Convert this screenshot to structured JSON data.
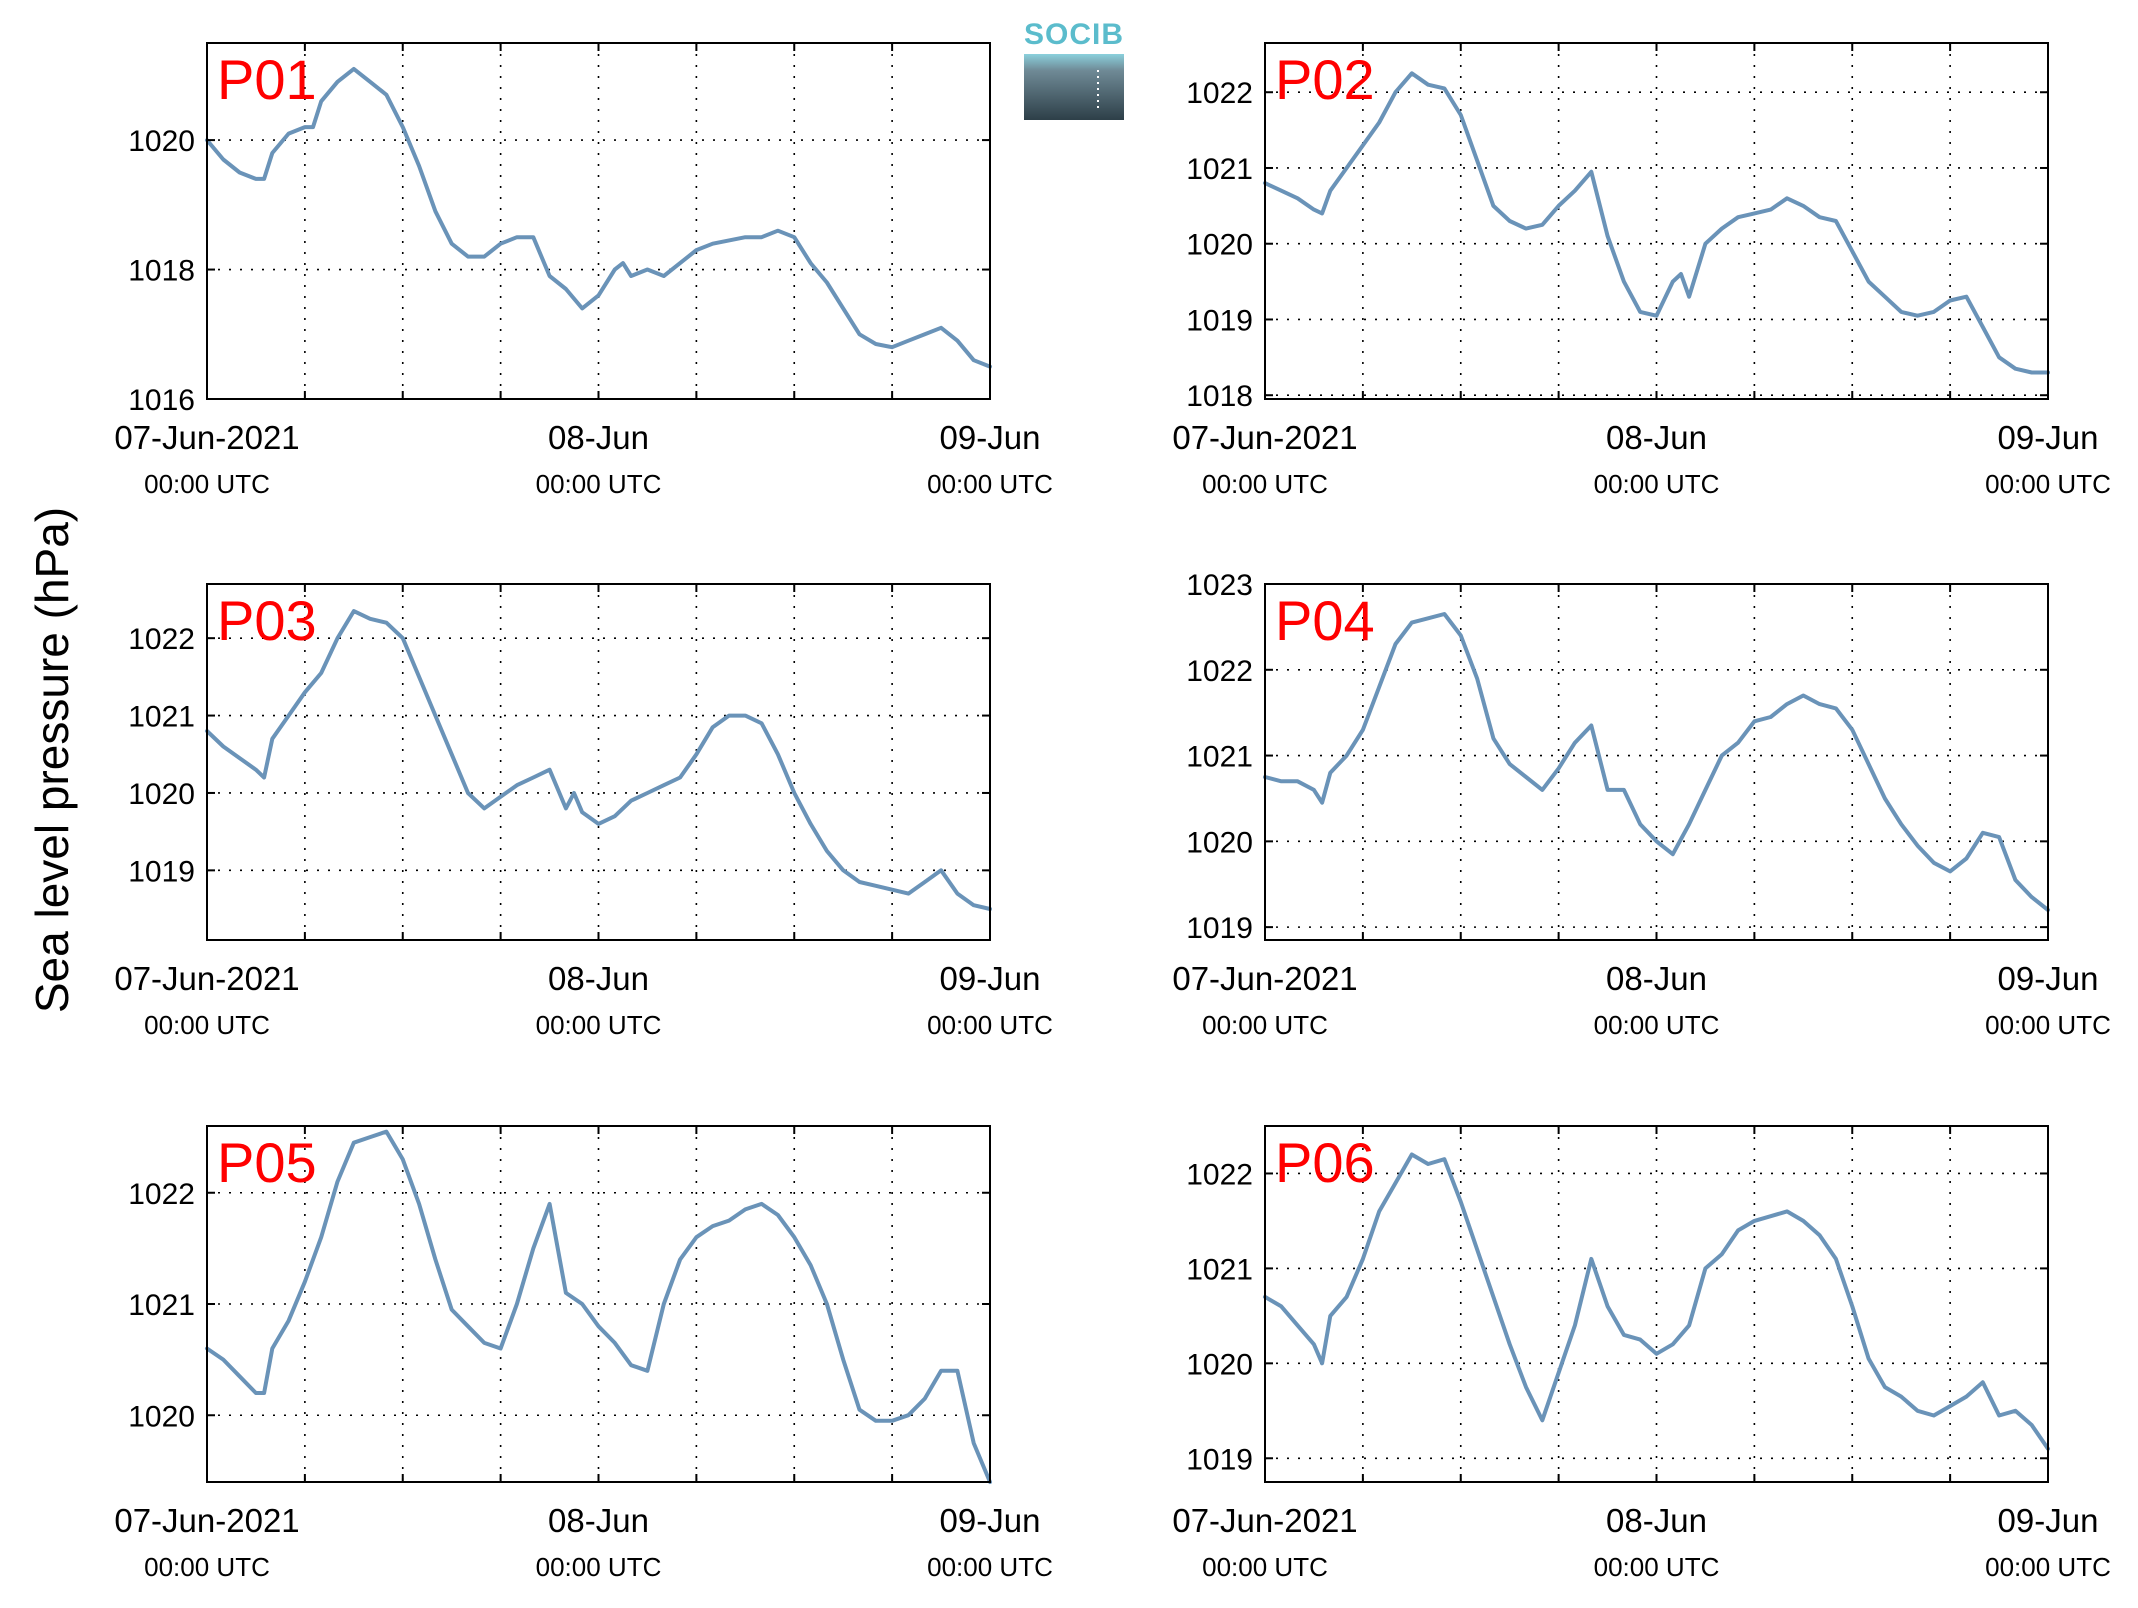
{
  "figure": {
    "ylabel": "Sea level pressure (hPa)",
    "logo_text": "SOCIB",
    "line_color": "#6a93b8"
  },
  "chart_data": [
    {
      "type": "line",
      "title": "P01",
      "ylim": [
        1016,
        1021.5
      ],
      "yticks": [
        1016,
        1018,
        1020
      ],
      "x_range_hours": [
        0,
        48
      ],
      "xticks": [
        {
          "line1": "07-Jun-2021",
          "line2": "00:00 UTC"
        },
        {
          "line1": "08-Jun",
          "line2": "00:00 UTC"
        },
        {
          "line1": "09-Jun",
          "line2": "00:00 UTC"
        }
      ],
      "grid": true,
      "series": [
        {
          "x": [
            0,
            1,
            2,
            3,
            3.5,
            4,
            5,
            6,
            6.5,
            7,
            8,
            9,
            10,
            11,
            12,
            13,
            14,
            15,
            16,
            17,
            18,
            19,
            20,
            21,
            22,
            23,
            24,
            25,
            25.5,
            26,
            27,
            28,
            29,
            30,
            31,
            32,
            33,
            34,
            35,
            36,
            37,
            38,
            39,
            40,
            41,
            42,
            43,
            44,
            45,
            46,
            47,
            48
          ],
          "y": [
            1020,
            1019.7,
            1019.5,
            1019.4,
            1019.4,
            1019.8,
            1020.1,
            1020.2,
            1020.2,
            1020.6,
            1020.9,
            1021.1,
            1020.9,
            1020.7,
            1020.2,
            1019.6,
            1018.9,
            1018.4,
            1018.2,
            1018.2,
            1018.4,
            1018.5,
            1018.5,
            1017.9,
            1017.7,
            1017.4,
            1017.6,
            1018.0,
            1018.1,
            1017.9,
            1018.0,
            1017.9,
            1018.1,
            1018.3,
            1018.4,
            1018.45,
            1018.5,
            1018.5,
            1018.6,
            1018.5,
            1018.1,
            1017.8,
            1017.4,
            1017.0,
            1016.85,
            1016.8,
            1016.9,
            1017.0,
            1017.1,
            1016.9,
            1016.6,
            1016.5
          ]
        }
      ]
    },
    {
      "type": "line",
      "title": "P02",
      "ylim": [
        1017.95,
        1022.65
      ],
      "yticks": [
        1018,
        1019,
        1020,
        1021,
        1022
      ],
      "x_range_hours": [
        0,
        48
      ],
      "xticks": [
        {
          "line1": "07-Jun-2021",
          "line2": "00:00 UTC"
        },
        {
          "line1": "08-Jun",
          "line2": "00:00 UTC"
        },
        {
          "line1": "09-Jun",
          "line2": "00:00 UTC"
        }
      ],
      "grid": true,
      "series": [
        {
          "x": [
            0,
            1,
            2,
            3,
            3.5,
            4,
            5,
            6,
            7,
            8,
            9,
            10,
            11,
            12,
            13,
            14,
            15,
            16,
            17,
            18,
            19,
            20,
            21,
            22,
            23,
            24,
            25,
            25.5,
            26,
            27,
            28,
            29,
            30,
            31,
            32,
            33,
            34,
            35,
            36,
            37,
            38,
            39,
            40,
            41,
            42,
            43,
            44,
            45,
            46,
            47,
            48
          ],
          "y": [
            1020.8,
            1020.7,
            1020.6,
            1020.45,
            1020.4,
            1020.7,
            1021.0,
            1021.3,
            1021.6,
            1022.0,
            1022.25,
            1022.1,
            1022.05,
            1021.7,
            1021.1,
            1020.5,
            1020.3,
            1020.2,
            1020.25,
            1020.5,
            1020.7,
            1020.95,
            1020.1,
            1019.5,
            1019.1,
            1019.05,
            1019.5,
            1019.6,
            1019.3,
            1020.0,
            1020.2,
            1020.35,
            1020.4,
            1020.45,
            1020.6,
            1020.5,
            1020.35,
            1020.3,
            1019.9,
            1019.5,
            1019.3,
            1019.1,
            1019.05,
            1019.1,
            1019.25,
            1019.3,
            1018.9,
            1018.5,
            1018.35,
            1018.3,
            1018.3
          ]
        }
      ]
    },
    {
      "type": "line",
      "title": "P03",
      "ylim": [
        1018.1,
        1022.7
      ],
      "yticks": [
        1019,
        1020,
        1021,
        1022
      ],
      "x_range_hours": [
        0,
        48
      ],
      "xticks": [
        {
          "line1": "07-Jun-2021",
          "line2": "00:00 UTC"
        },
        {
          "line1": "08-Jun",
          "line2": "00:00 UTC"
        },
        {
          "line1": "09-Jun",
          "line2": "00:00 UTC"
        }
      ],
      "grid": true,
      "series": [
        {
          "x": [
            0,
            1,
            2,
            3,
            3.5,
            4,
            5,
            6,
            7,
            8,
            9,
            10,
            11,
            12,
            13,
            14,
            15,
            16,
            17,
            18,
            19,
            20,
            21,
            22,
            22.5,
            23,
            24,
            25,
            26,
            27,
            28,
            29,
            30,
            31,
            32,
            33,
            34,
            35,
            36,
            37,
            38,
            39,
            40,
            41,
            42,
            43,
            44,
            45,
            46,
            47,
            48
          ],
          "y": [
            1020.8,
            1020.6,
            1020.45,
            1020.3,
            1020.2,
            1020.7,
            1021.0,
            1021.3,
            1021.55,
            1022.0,
            1022.35,
            1022.25,
            1022.2,
            1022.0,
            1021.5,
            1021.0,
            1020.5,
            1020.0,
            1019.8,
            1019.95,
            1020.1,
            1020.2,
            1020.3,
            1019.8,
            1020.0,
            1019.75,
            1019.6,
            1019.7,
            1019.9,
            1020.0,
            1020.1,
            1020.2,
            1020.5,
            1020.85,
            1021.0,
            1021.0,
            1020.9,
            1020.5,
            1020.0,
            1019.6,
            1019.25,
            1019.0,
            1018.85,
            1018.8,
            1018.75,
            1018.7,
            1018.85,
            1019.0,
            1018.7,
            1018.55,
            1018.5
          ]
        }
      ]
    },
    {
      "type": "line",
      "title": "P04",
      "ylim": [
        1018.85,
        1023
      ],
      "yticks": [
        1019,
        1020,
        1021,
        1022,
        1023
      ],
      "x_range_hours": [
        0,
        48
      ],
      "xticks": [
        {
          "line1": "07-Jun-2021",
          "line2": "00:00 UTC"
        },
        {
          "line1": "08-Jun",
          "line2": "00:00 UTC"
        },
        {
          "line1": "09-Jun",
          "line2": "00:00 UTC"
        }
      ],
      "grid": true,
      "series": [
        {
          "x": [
            0,
            1,
            2,
            3,
            3.5,
            4,
            5,
            6,
            7,
            8,
            9,
            10,
            11,
            12,
            13,
            14,
            15,
            16,
            17,
            18,
            19,
            20,
            21,
            22,
            23,
            24,
            25,
            26,
            27,
            28,
            29,
            30,
            31,
            32,
            33,
            34,
            35,
            36,
            37,
            38,
            39,
            40,
            41,
            42,
            43,
            44,
            45,
            46,
            47,
            48
          ],
          "y": [
            1020.75,
            1020.7,
            1020.7,
            1020.6,
            1020.45,
            1020.8,
            1021.0,
            1021.3,
            1021.8,
            1022.3,
            1022.55,
            1022.6,
            1022.65,
            1022.4,
            1021.9,
            1021.2,
            1020.9,
            1020.75,
            1020.6,
            1020.85,
            1021.15,
            1021.35,
            1020.6,
            1020.6,
            1020.2,
            1020.0,
            1019.85,
            1020.2,
            1020.6,
            1021.0,
            1021.15,
            1021.4,
            1021.45,
            1021.6,
            1021.7,
            1021.6,
            1021.55,
            1021.3,
            1020.9,
            1020.5,
            1020.2,
            1019.95,
            1019.75,
            1019.65,
            1019.8,
            1020.1,
            1020.05,
            1019.55,
            1019.35,
            1019.2
          ]
        }
      ]
    },
    {
      "type": "line",
      "title": "P05",
      "ylim": [
        1019.4,
        1022.6
      ],
      "yticks": [
        1020,
        1021,
        1022
      ],
      "x_range_hours": [
        0,
        48
      ],
      "xticks": [
        {
          "line1": "07-Jun-2021",
          "line2": "00:00 UTC"
        },
        {
          "line1": "08-Jun",
          "line2": "00:00 UTC"
        },
        {
          "line1": "09-Jun",
          "line2": "00:00 UTC"
        }
      ],
      "grid": true,
      "series": [
        {
          "x": [
            0,
            1,
            2,
            3,
            3.5,
            4,
            5,
            6,
            7,
            8,
            9,
            10,
            11,
            12,
            13,
            14,
            15,
            16,
            17,
            18,
            19,
            20,
            21,
            22,
            23,
            24,
            25,
            26,
            27,
            28,
            29,
            30,
            31,
            32,
            33,
            34,
            35,
            36,
            37,
            38,
            39,
            40,
            41,
            42,
            43,
            44,
            45,
            46,
            47,
            48
          ],
          "y": [
            1020.6,
            1020.5,
            1020.35,
            1020.2,
            1020.2,
            1020.6,
            1020.85,
            1021.2,
            1021.6,
            1022.1,
            1022.45,
            1022.5,
            1022.55,
            1022.3,
            1021.9,
            1021.4,
            1020.95,
            1020.8,
            1020.65,
            1020.6,
            1021.0,
            1021.5,
            1021.9,
            1021.1,
            1021.0,
            1020.8,
            1020.65,
            1020.45,
            1020.4,
            1021.0,
            1021.4,
            1021.6,
            1021.7,
            1021.75,
            1021.85,
            1021.9,
            1021.8,
            1021.6,
            1021.35,
            1021.0,
            1020.5,
            1020.05,
            1019.95,
            1019.95,
            1020.0,
            1020.15,
            1020.4,
            1020.4,
            1019.75,
            1019.4
          ]
        }
      ]
    },
    {
      "type": "line",
      "title": "P06",
      "ylim": [
        1018.75,
        1022.5
      ],
      "yticks": [
        1019,
        1020,
        1021,
        1022
      ],
      "x_range_hours": [
        0,
        48
      ],
      "xticks": [
        {
          "line1": "07-Jun-2021",
          "line2": "00:00 UTC"
        },
        {
          "line1": "08-Jun",
          "line2": "00:00 UTC"
        },
        {
          "line1": "09-Jun",
          "line2": "00:00 UTC"
        }
      ],
      "grid": true,
      "series": [
        {
          "x": [
            0,
            1,
            2,
            3,
            3.5,
            4,
            5,
            6,
            7,
            8,
            9,
            10,
            11,
            12,
            13,
            14,
            15,
            16,
            17,
            18,
            19,
            20,
            21,
            22,
            23,
            24,
            25,
            26,
            27,
            28,
            29,
            30,
            31,
            32,
            33,
            34,
            35,
            36,
            37,
            38,
            39,
            40,
            41,
            42,
            43,
            44,
            45,
            46,
            47,
            48
          ],
          "y": [
            1020.7,
            1020.6,
            1020.4,
            1020.2,
            1020.0,
            1020.5,
            1020.7,
            1021.1,
            1021.6,
            1021.9,
            1022.2,
            1022.1,
            1022.15,
            1021.7,
            1021.2,
            1020.7,
            1020.2,
            1019.75,
            1019.4,
            1019.9,
            1020.4,
            1021.1,
            1020.6,
            1020.3,
            1020.25,
            1020.1,
            1020.2,
            1020.4,
            1021.0,
            1021.15,
            1021.4,
            1021.5,
            1021.55,
            1021.6,
            1021.5,
            1021.35,
            1021.1,
            1020.6,
            1020.05,
            1019.75,
            1019.65,
            1019.5,
            1019.45,
            1019.55,
            1019.65,
            1019.8,
            1019.45,
            1019.5,
            1019.35,
            1019.1
          ]
        }
      ]
    }
  ]
}
